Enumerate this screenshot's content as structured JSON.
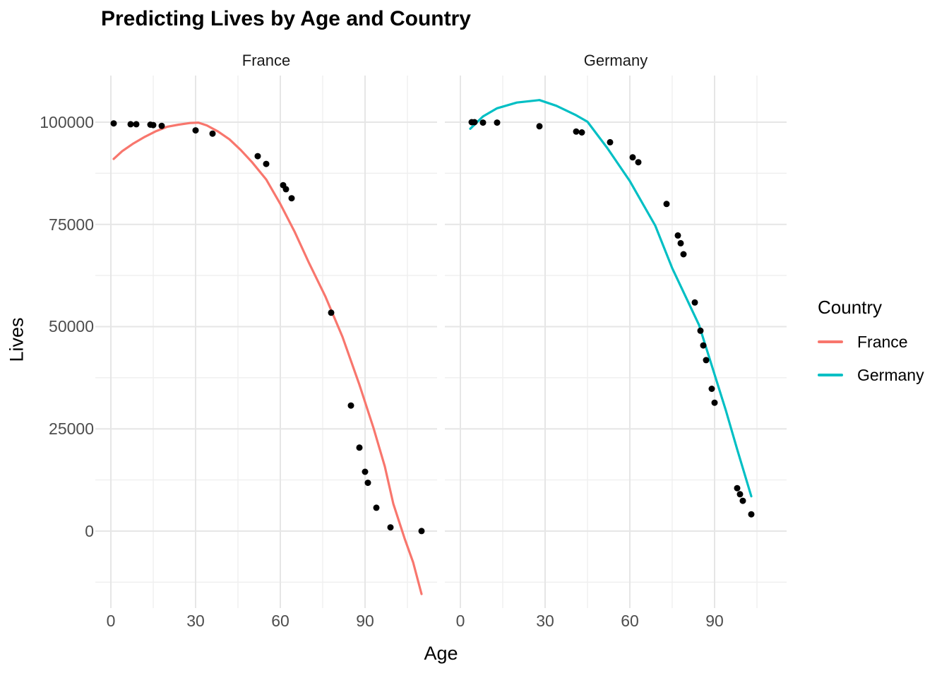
{
  "chart_data": {
    "type": "scatter",
    "title": "Predicting Lives by Age and Country",
    "xlabel": "Age",
    "ylabel": "Lives",
    "grid": "on",
    "point_color": "#000000",
    "legend": {
      "title": "Country",
      "position": "right",
      "entries": [
        {
          "label": "France",
          "color": "#F8766D"
        },
        {
          "label": "Germany",
          "color": "#00BFC4"
        }
      ]
    },
    "axes": {
      "x": {
        "ticks": [
          0,
          30,
          60,
          90
        ],
        "minor_ticks": [
          15,
          45,
          75,
          105
        ],
        "lim": [
          -5.5,
          115.5
        ]
      },
      "y": {
        "ticks": [
          0,
          25000,
          50000,
          75000,
          100000
        ],
        "minor_ticks": [
          -12500,
          12500,
          37500,
          62500,
          87500
        ],
        "lim": [
          -17800,
          111400
        ]
      }
    },
    "facets": [
      {
        "label": "France",
        "color": "#F8766D",
        "points": [
          [
            1,
            99700
          ],
          [
            7,
            99500
          ],
          [
            9,
            99500
          ],
          [
            14,
            99400
          ],
          [
            15,
            99300
          ],
          [
            18,
            99100
          ],
          [
            30,
            98000
          ],
          [
            36,
            97200
          ],
          [
            52,
            91700
          ],
          [
            55,
            89800
          ],
          [
            61,
            84600
          ],
          [
            62,
            83600
          ],
          [
            64,
            81400
          ],
          [
            78,
            53400
          ],
          [
            85,
            30700
          ],
          [
            88,
            20400
          ],
          [
            90,
            14500
          ],
          [
            91,
            11800
          ],
          [
            94,
            5700
          ],
          [
            99,
            900
          ],
          [
            110,
            0
          ]
        ],
        "line": [
          [
            1,
            91000
          ],
          [
            4,
            92900
          ],
          [
            8,
            94800
          ],
          [
            12,
            96400
          ],
          [
            16,
            97800
          ],
          [
            20,
            98900
          ],
          [
            24,
            99400
          ],
          [
            28,
            99800
          ],
          [
            31,
            99900
          ],
          [
            34,
            99200
          ],
          [
            38,
            97700
          ],
          [
            42,
            95800
          ],
          [
            46,
            93200
          ],
          [
            50,
            90200
          ],
          [
            55,
            86000
          ],
          [
            60,
            80000
          ],
          [
            65,
            73300
          ],
          [
            70,
            65800
          ],
          [
            76,
            57300
          ],
          [
            82,
            47500
          ],
          [
            88,
            35800
          ],
          [
            93,
            25200
          ],
          [
            97,
            15800
          ],
          [
            100,
            6700
          ],
          [
            104,
            -1800
          ],
          [
            107,
            -7600
          ],
          [
            110,
            -15400
          ]
        ]
      },
      {
        "label": "Germany",
        "color": "#00BFC4",
        "points": [
          [
            4,
            100000
          ],
          [
            5,
            100000
          ],
          [
            8,
            99900
          ],
          [
            13,
            99900
          ],
          [
            28,
            99000
          ],
          [
            41,
            97700
          ],
          [
            43,
            97500
          ],
          [
            53,
            95100
          ],
          [
            61,
            91400
          ],
          [
            63,
            90200
          ],
          [
            73,
            80000
          ],
          [
            77,
            72300
          ],
          [
            78,
            70400
          ],
          [
            79,
            67700
          ],
          [
            83,
            55900
          ],
          [
            85,
            49000
          ],
          [
            86,
            45400
          ],
          [
            87,
            41800
          ],
          [
            89,
            34800
          ],
          [
            90,
            31400
          ],
          [
            98,
            10500
          ],
          [
            99,
            9000
          ],
          [
            100,
            7400
          ],
          [
            103,
            4100
          ]
        ],
        "line": [
          [
            3.5,
            98400
          ],
          [
            8,
            101400
          ],
          [
            13,
            103400
          ],
          [
            20,
            104800
          ],
          [
            28,
            105400
          ],
          [
            34,
            104000
          ],
          [
            41,
            101700
          ],
          [
            45,
            100100
          ],
          [
            52,
            93700
          ],
          [
            60,
            85600
          ],
          [
            69,
            74700
          ],
          [
            75,
            64300
          ],
          [
            84.5,
            50400
          ],
          [
            94,
            29500
          ],
          [
            98,
            20000
          ],
          [
            103,
            8500
          ]
        ]
      }
    ]
  }
}
